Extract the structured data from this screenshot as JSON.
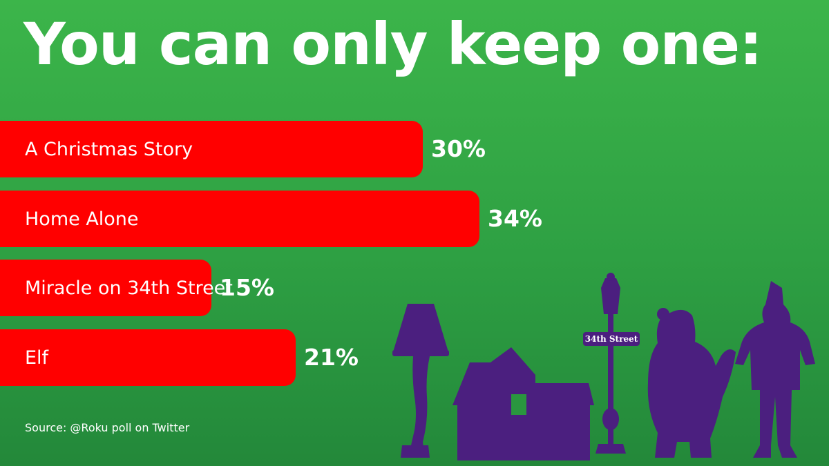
{
  "title": "You can only keep one:",
  "source": "Source: @Roku poll on Twitter",
  "colors": {
    "background": "#2ea043",
    "bar": "#ff0000",
    "text": "#ffffff",
    "silhouette": "#4b1f7f"
  },
  "illustration": {
    "street_sign": "34th Street",
    "icons": [
      "leg-lamp-icon",
      "house-icon",
      "street-lamp-icon",
      "santa-icon",
      "elf-icon"
    ]
  },
  "chart_data": {
    "type": "bar",
    "orientation": "horizontal",
    "title": "You can only keep one:",
    "categories": [
      "A Christmas Story",
      "Home Alone",
      "Miracle on 34th Street",
      "Elf"
    ],
    "values": [
      30,
      34,
      15,
      21
    ],
    "value_labels": [
      "30%",
      "34%",
      "15%",
      "21%"
    ],
    "unit": "%",
    "xlabel": "",
    "ylabel": "",
    "grid": false,
    "legend": "none"
  }
}
